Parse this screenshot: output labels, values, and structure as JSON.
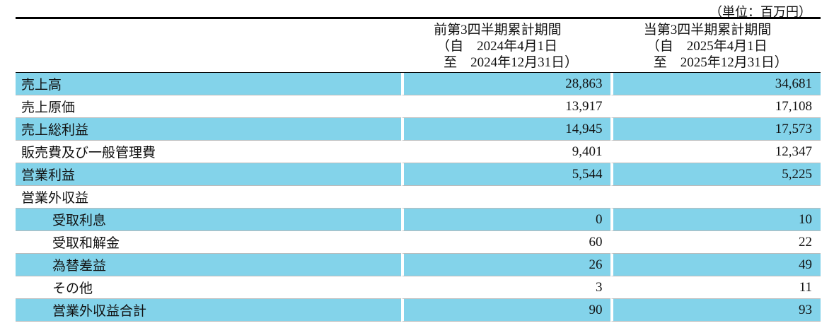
{
  "header": {
    "unit": "（単位：百万円）",
    "columns": [
      {
        "lines": [
          "前第3四半期累計期間",
          "（自　2024年4月1日",
          "至　2024年12月31日）"
        ]
      },
      {
        "lines": [
          "当第3四半期累計期間",
          "（自　2025年4月1日",
          "至　2025年12月31日）"
        ]
      }
    ]
  },
  "table": {
    "rows": [
      {
        "label": "売上高",
        "values": [
          "28,863",
          "34,681"
        ]
      },
      {
        "label": "売上原価",
        "values": [
          "13,917",
          "17,108"
        ]
      },
      {
        "label": "売上総利益",
        "values": [
          "14,945",
          "17,573"
        ]
      },
      {
        "label": "販売費及び一般管理費",
        "values": [
          "9,401",
          "12,347"
        ]
      },
      {
        "label": "営業利益",
        "values": [
          "5,544",
          "5,225"
        ]
      },
      {
        "label": "営業外収益"
      },
      {
        "label": "受取利息",
        "values": [
          "0",
          "10"
        ]
      },
      {
        "label": "受取和解金",
        "values": [
          "60",
          "22"
        ]
      },
      {
        "label": "為替差益",
        "values": [
          "26",
          "49"
        ]
      },
      {
        "label": "その他",
        "values": [
          "3",
          "11"
        ]
      },
      {
        "label": "営業外収益合計",
        "values": [
          "90",
          "93"
        ]
      }
    ]
  }
}
